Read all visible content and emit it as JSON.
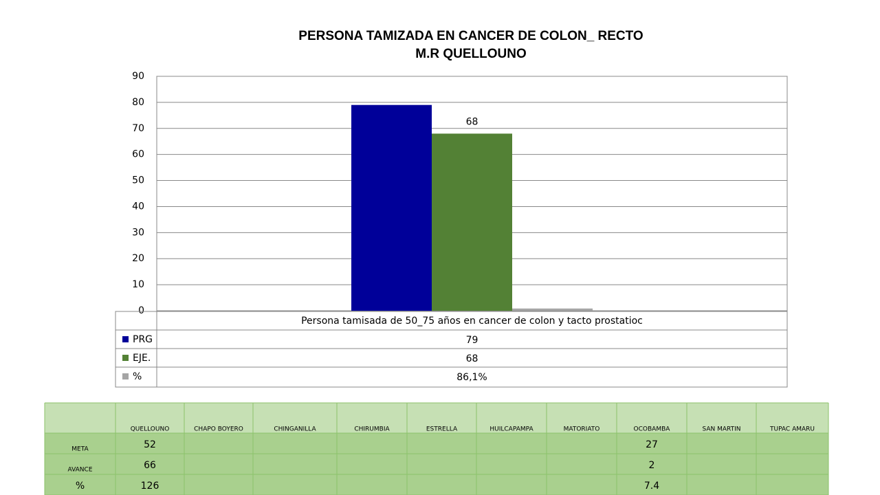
{
  "chart_data": {
    "type": "bar",
    "title": "PERSONA TAMIZADA  EN CANCER DE COLON_ RECTO",
    "subtitle": "M.R QUELLOUNO",
    "categories": [
      "Persona tamisada de 50_75 años en cancer de colon y tacto prostatioc"
    ],
    "series": [
      {
        "name": "PRG",
        "color": "#000099",
        "values": [
          79
        ]
      },
      {
        "name": "EJE.",
        "color": "#538135",
        "values": [
          68
        ],
        "show_labels": true
      },
      {
        "name": "%",
        "color": "#a5a5a5",
        "values": [
          0.861
        ],
        "value_labels": [
          "86,1%"
        ]
      }
    ],
    "ylim": [
      0,
      90
    ],
    "yticks": [
      0,
      10,
      20,
      30,
      40,
      50,
      60,
      70,
      80,
      90
    ],
    "grid": true
  },
  "table": {
    "columns": [
      "QUELLOUNO",
      "CHAPO BOYERO",
      "CHINGANILLA",
      "CHIRUMBIA",
      "ESTRELLA",
      "HUILCAPAMPA",
      "MATORIATO",
      "OCOBAMBA",
      "SAN MARTIN",
      "TUPAC AMARU"
    ],
    "rows": [
      {
        "label": "META",
        "cells": [
          52,
          null,
          null,
          null,
          null,
          null,
          null,
          27,
          null,
          null
        ]
      },
      {
        "label": "AVANCE",
        "cells": [
          66,
          null,
          null,
          null,
          null,
          null,
          null,
          2,
          null,
          null
        ]
      },
      {
        "label": "%",
        "cells": [
          126,
          null,
          null,
          null,
          null,
          null,
          null,
          7.4,
          null,
          null
        ]
      }
    ]
  }
}
